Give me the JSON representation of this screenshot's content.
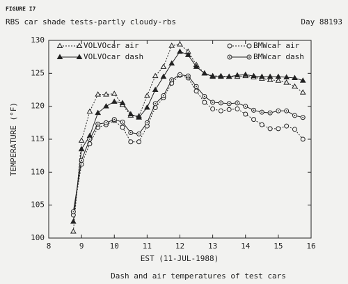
{
  "chart_data": {
    "type": "line",
    "figure_label": "FIGURE I7",
    "title": "RBS car shade tests-partly cloudy-rbs",
    "day_label": "Day 88193",
    "xlabel": "EST (11-JUL-1988)",
    "ylabel": "TEMPERATURE (°F)",
    "caption": "Dash and air temperatures of test cars",
    "xlim": [
      8,
      16
    ],
    "xticks": [
      8,
      9,
      10,
      11,
      12,
      13,
      14,
      15,
      16
    ],
    "ylim": [
      100,
      130
    ],
    "yticks": [
      100,
      105,
      110,
      115,
      120,
      125,
      130
    ],
    "x": [
      8.75,
      9,
      9.25,
      9.5,
      9.75,
      10,
      10.25,
      10.5,
      10.75,
      11,
      11.25,
      11.5,
      11.75,
      12,
      12.25,
      12.5,
      12.75,
      13,
      13.25,
      13.5,
      13.75,
      14,
      14.25,
      14.5,
      14.75,
      15,
      15.25,
      15.5,
      15.75
    ],
    "series": [
      {
        "name": "VOLVOcar air",
        "color": "#222222",
        "marker": "triangle-open",
        "dashed": true,
        "values": [
          101,
          114.8,
          119.2,
          121.8,
          121.8,
          121.9,
          120.2,
          118.6,
          118.5,
          121.6,
          124.6,
          126.0,
          129.2,
          129.4,
          128.3,
          126.3,
          125.0,
          124.6,
          124.6,
          124.5,
          124.5,
          124.6,
          124.4,
          124.2,
          124.0,
          123.9,
          123.6,
          123.0,
          122.1
        ]
      },
      {
        "name": "VOLVOcar dash",
        "color": "#222222",
        "marker": "triangle-filled",
        "dashed": false,
        "values": [
          102.5,
          113.5,
          115.5,
          119.0,
          120.0,
          120.7,
          120.5,
          118.8,
          118.3,
          119.8,
          122.5,
          124.5,
          126.5,
          128.3,
          127.8,
          126.0,
          125.0,
          124.5,
          124.5,
          124.5,
          124.7,
          124.8,
          124.6,
          124.5,
          124.5,
          124.5,
          124.4,
          124.3,
          123.9
        ]
      },
      {
        "name": "BMWcar air",
        "color": "#222222",
        "marker": "circle-open",
        "dashed": true,
        "values": [
          103.5,
          111.2,
          114.3,
          116.8,
          117.2,
          117.8,
          116.8,
          114.6,
          114.6,
          117.0,
          119.8,
          121.3,
          123.5,
          124.7,
          124.3,
          122.3,
          120.6,
          119.6,
          119.3,
          119.5,
          119.6,
          118.8,
          118.0,
          117.2,
          116.6,
          116.6,
          117.0,
          116.5,
          115.0
        ]
      },
      {
        "name": "BMWcar dash",
        "color": "#222222",
        "marker": "circle-dot",
        "dashed": false,
        "values": [
          104.0,
          111.8,
          115.0,
          117.3,
          117.5,
          118.0,
          117.6,
          116.0,
          115.8,
          117.5,
          120.4,
          121.6,
          124.0,
          124.8,
          124.6,
          123.0,
          121.5,
          120.6,
          120.5,
          120.4,
          120.5,
          120.0,
          119.4,
          119.1,
          119.0,
          119.3,
          119.3,
          118.6,
          118.3
        ]
      }
    ]
  }
}
